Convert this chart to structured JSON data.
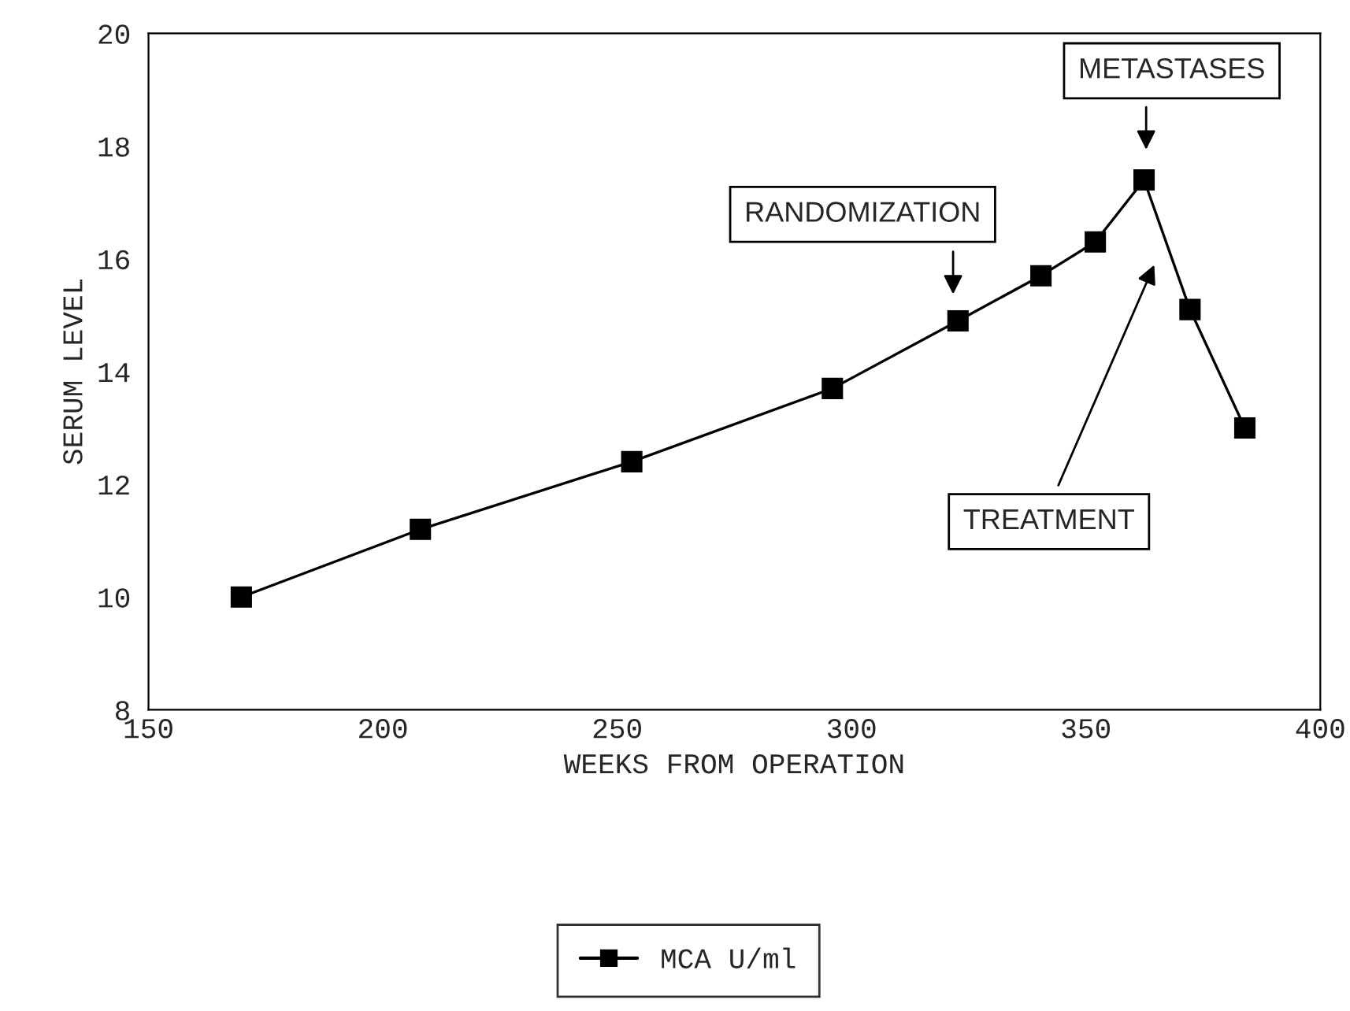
{
  "chart_data": {
    "type": "line",
    "xlabel": "WEEKS FROM OPERATION",
    "ylabel": "SERUM LEVEL",
    "x": [
      169.8,
      208.0,
      253.1,
      295.9,
      322.7,
      340.4,
      352.0,
      362.4,
      372.2,
      383.9
    ],
    "series": [
      {
        "name": "MCA U/ml",
        "color": "#000000",
        "values": [
          10.0,
          11.2,
          12.4,
          13.7,
          14.9,
          15.7,
          16.3,
          17.4,
          15.1,
          13.0
        ]
      }
    ],
    "xlim": [
      150,
      400
    ],
    "xticks": [
      150,
      200,
      250,
      300,
      350,
      400
    ],
    "ylim": [
      8,
      20
    ],
    "yticks": [
      8,
      10,
      12,
      14,
      16,
      18,
      20
    ],
    "marker": "square",
    "line_style": "solid",
    "grid": false,
    "legend": "bottom",
    "annotations": [
      "RANDOMIZATION",
      "METASTASES",
      "TREATMENT"
    ]
  }
}
